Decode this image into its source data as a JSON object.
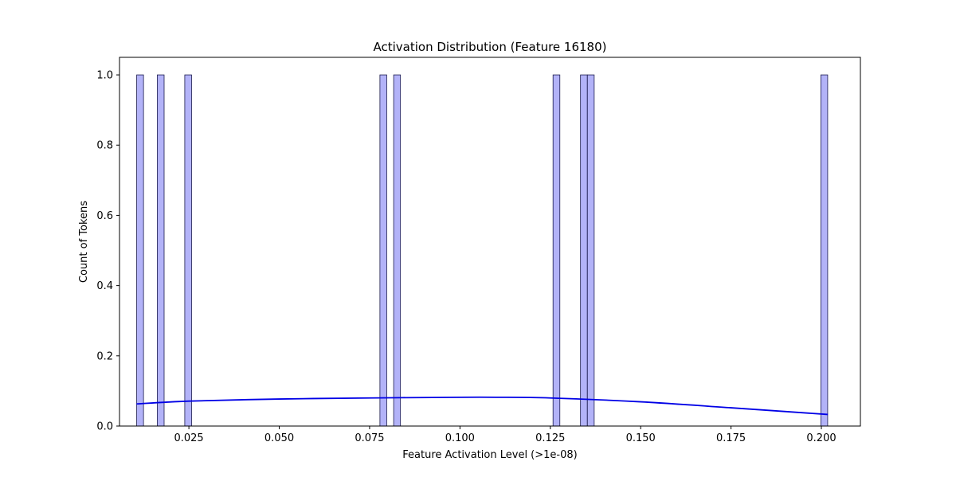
{
  "chart_data": {
    "type": "bar",
    "title": "Activation Distribution (Feature 16180)",
    "xlabel": "Feature Activation Level (>1e-08)",
    "ylabel": "Count of Tokens",
    "xlim": [
      0.0058,
      0.2108
    ],
    "ylim": [
      0,
      1.05
    ],
    "grid": false,
    "x_ticks": [
      0.025,
      0.05,
      0.075,
      0.1,
      0.125,
      0.15,
      0.175,
      0.2
    ],
    "x_tick_labels": [
      "0.025",
      "0.050",
      "0.075",
      "0.100",
      "0.125",
      "0.150",
      "0.175",
      "0.200"
    ],
    "y_ticks": [
      0,
      0.2,
      0.4,
      0.6,
      0.8,
      1.0
    ],
    "y_tick_labels": [
      "0.0",
      "0.2",
      "0.4",
      "0.6",
      "0.8",
      "1.0"
    ],
    "bin_width": 0.00189,
    "bins": [
      {
        "x": 0.0115,
        "count": 1
      },
      {
        "x": 0.0172,
        "count": 1
      },
      {
        "x": 0.0248,
        "count": 1
      },
      {
        "x": 0.0788,
        "count": 1
      },
      {
        "x": 0.0826,
        "count": 1
      },
      {
        "x": 0.1267,
        "count": 1
      },
      {
        "x": 0.1343,
        "count": 1
      },
      {
        "x": 0.1362,
        "count": 1
      },
      {
        "x": 0.2008,
        "count": 1
      }
    ],
    "kde": {
      "x": [
        0.0105,
        0.025,
        0.05,
        0.075,
        0.1,
        0.11,
        0.125,
        0.15,
        0.175,
        0.2018
      ],
      "y": [
        0.063,
        0.071,
        0.077,
        0.08,
        0.082,
        0.082,
        0.08,
        0.069,
        0.052,
        0.033
      ]
    },
    "colors": {
      "bar_fill": "#b3b3f8",
      "bar_edge": "#1a1a4d",
      "kde_line": "#0000e6"
    }
  }
}
